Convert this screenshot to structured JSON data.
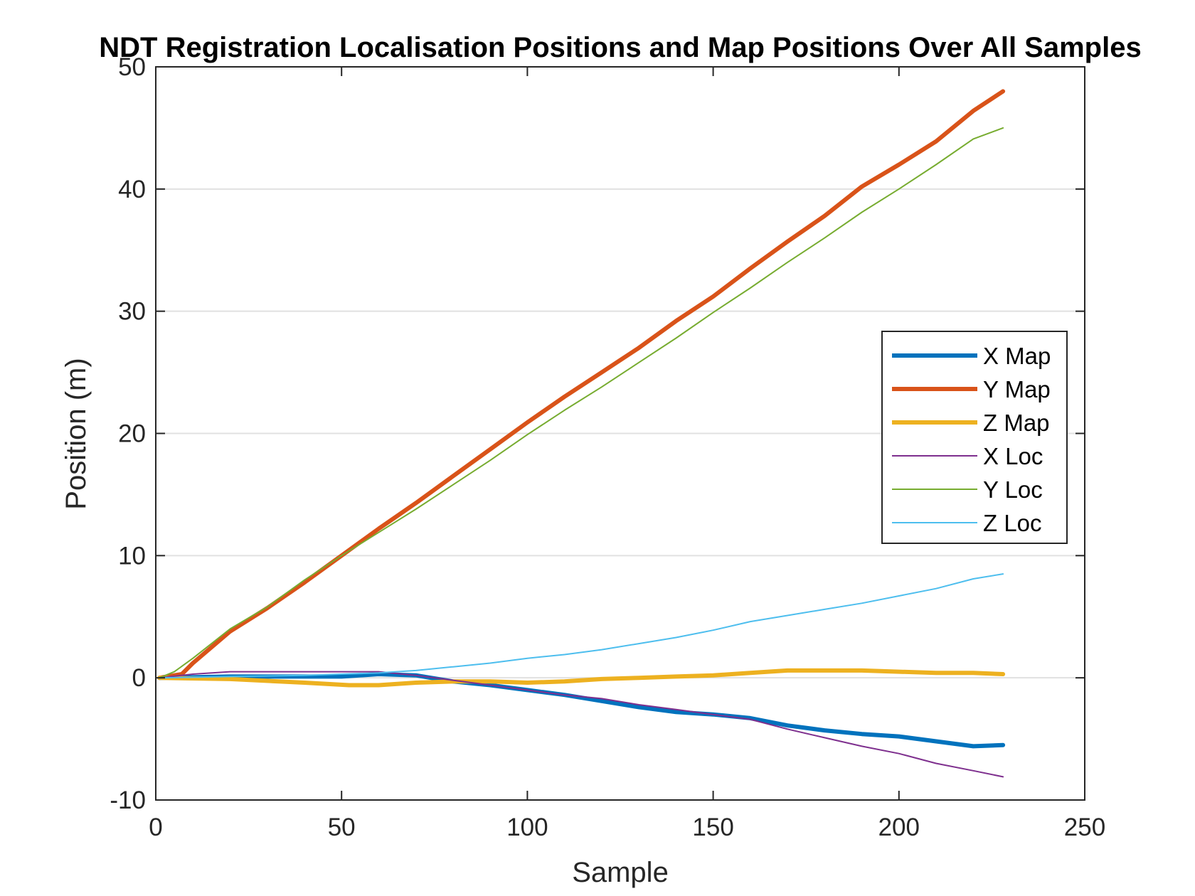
{
  "chart_data": {
    "type": "line",
    "title": "NDT Registration Localisation Positions and Map Positions Over All Samples",
    "xlabel": "Sample",
    "ylabel": "Position (m)",
    "xlim": [
      0,
      250
    ],
    "ylim": [
      -10,
      50
    ],
    "xticks": [
      0,
      50,
      100,
      150,
      200,
      250
    ],
    "yticks": [
      -10,
      0,
      10,
      20,
      30,
      40,
      50
    ],
    "grid": "horizontal",
    "legend_position": "right",
    "series": [
      {
        "name": "X Map",
        "color": "#0072BD",
        "weight": "thick",
        "x": [
          1,
          20,
          40,
          50,
          60,
          70,
          80,
          90,
          100,
          110,
          120,
          130,
          140,
          150,
          160,
          170,
          180,
          190,
          200,
          210,
          220,
          228
        ],
        "y": [
          0,
          0.1,
          0.1,
          0.1,
          0.3,
          0.2,
          -0.3,
          -0.6,
          -1.0,
          -1.4,
          -1.9,
          -2.4,
          -2.8,
          -3.0,
          -3.3,
          -3.9,
          -4.3,
          -4.6,
          -4.8,
          -5.2,
          -5.6,
          -5.5
        ]
      },
      {
        "name": "Y Map",
        "color": "#D95319",
        "weight": "thick",
        "x": [
          1,
          7,
          10,
          20,
          30,
          40,
          50,
          60,
          70,
          80,
          90,
          100,
          110,
          120,
          130,
          140,
          150,
          160,
          170,
          180,
          190,
          200,
          210,
          220,
          228
        ],
        "y": [
          0,
          0.3,
          1.2,
          3.8,
          5.7,
          7.8,
          10.0,
          12.2,
          14.3,
          16.5,
          18.7,
          20.9,
          23.0,
          25.0,
          27.0,
          29.2,
          31.2,
          33.5,
          35.7,
          37.8,
          40.2,
          42.0,
          43.9,
          46.4,
          48.0
        ]
      },
      {
        "name": "Z Map",
        "color": "#EDB120",
        "weight": "thick",
        "x": [
          1,
          20,
          40,
          52,
          60,
          70,
          80,
          90,
          100,
          110,
          120,
          130,
          140,
          150,
          160,
          170,
          180,
          190,
          200,
          210,
          220,
          228
        ],
        "y": [
          0,
          -0.1,
          -0.4,
          -0.6,
          -0.6,
          -0.4,
          -0.3,
          -0.3,
          -0.4,
          -0.3,
          -0.1,
          0.0,
          0.1,
          0.2,
          0.4,
          0.6,
          0.6,
          0.6,
          0.5,
          0.4,
          0.4,
          0.3
        ]
      },
      {
        "name": "X Loc",
        "color": "#7E2F8E",
        "weight": "thin",
        "x": [
          1,
          10,
          20,
          30,
          40,
          50,
          60,
          70,
          80,
          90,
          100,
          110,
          120,
          130,
          140,
          150,
          160,
          170,
          180,
          190,
          200,
          210,
          220,
          228
        ],
        "y": [
          0,
          0.3,
          0.5,
          0.5,
          0.5,
          0.5,
          0.5,
          0.2,
          -0.2,
          -0.6,
          -1.0,
          -1.4,
          -1.7,
          -2.2,
          -2.6,
          -3.0,
          -3.4,
          -4.2,
          -4.9,
          -5.6,
          -6.2,
          -7.0,
          -7.6,
          -8.1
        ]
      },
      {
        "name": "Y Loc",
        "color": "#77AC30",
        "weight": "thin",
        "x": [
          1,
          5,
          10,
          20,
          30,
          40,
          50,
          60,
          70,
          80,
          90,
          100,
          110,
          120,
          130,
          140,
          150,
          160,
          170,
          180,
          190,
          200,
          210,
          220,
          228
        ],
        "y": [
          0,
          0.5,
          1.6,
          4.0,
          5.8,
          8.0,
          10.0,
          11.9,
          13.8,
          15.8,
          17.8,
          19.9,
          21.9,
          23.8,
          25.8,
          27.8,
          29.9,
          31.9,
          34.0,
          36.0,
          38.1,
          40.0,
          42.0,
          44.1,
          45.0
        ]
      },
      {
        "name": "Z Loc",
        "color": "#4DBEEE",
        "weight": "thin",
        "x": [
          1,
          20,
          40,
          50,
          60,
          70,
          80,
          90,
          100,
          110,
          120,
          130,
          140,
          150,
          160,
          170,
          180,
          190,
          200,
          210,
          220,
          228
        ],
        "y": [
          0,
          0.1,
          0.2,
          0.3,
          0.4,
          0.6,
          0.9,
          1.2,
          1.6,
          1.9,
          2.3,
          2.8,
          3.3,
          3.9,
          4.6,
          5.1,
          5.6,
          6.1,
          6.7,
          7.3,
          8.1,
          8.5
        ]
      }
    ]
  }
}
